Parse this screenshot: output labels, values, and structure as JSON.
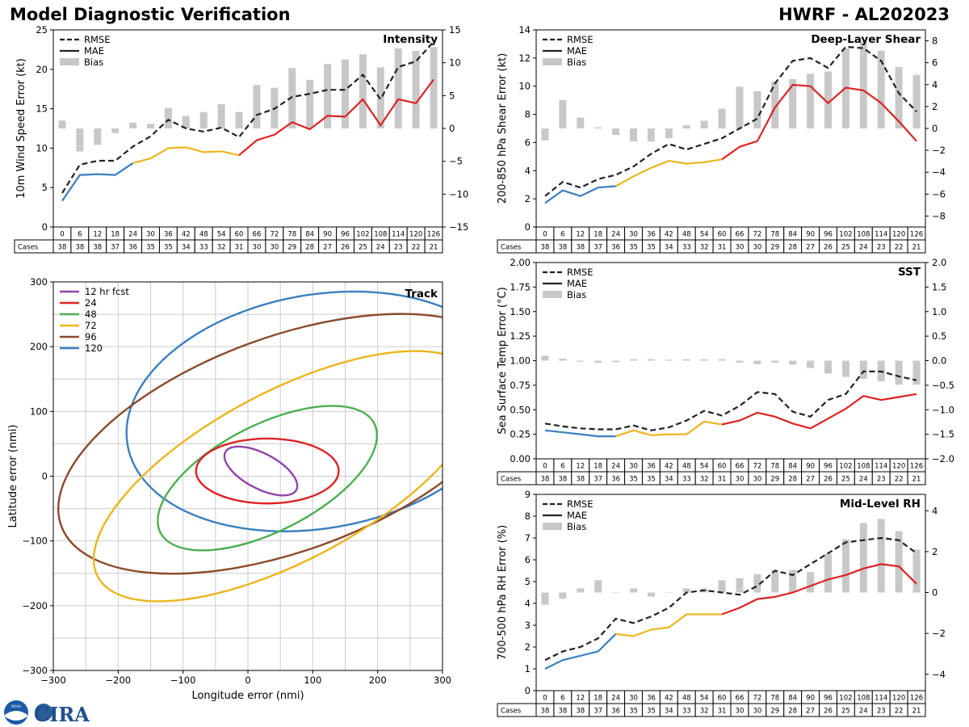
{
  "header": {
    "left_title": "Model Diagnostic Verification",
    "right_title": "HWRF - AL202023"
  },
  "logos": {
    "noaa": "NOAA",
    "cira": "CIRA"
  },
  "colors": {
    "rmse": "#222222",
    "mae_early": "#3a7fbe",
    "mae_mid": "#ecb51e",
    "mae_late": "#dc2324",
    "bias": "#c8c8c8",
    "grid": "#cccccc"
  },
  "cases_label": "Cases",
  "chart_data": [
    {
      "id": "intensity",
      "type": "line",
      "title": "Intensity",
      "ylabel": "10m Wind Speed Error (kt)",
      "ylim": [
        0,
        25
      ],
      "yticks": [
        0,
        5,
        10,
        15,
        20,
        25
      ],
      "y2lim": [
        -15,
        15
      ],
      "y2ticks": [
        -15,
        -10,
        -5,
        0,
        5,
        10,
        15
      ],
      "legend": [
        "RMSE",
        "MAE",
        "Bias"
      ],
      "x": [
        0,
        6,
        12,
        18,
        24,
        30,
        36,
        42,
        48,
        54,
        60,
        66,
        72,
        78,
        84,
        90,
        96,
        102,
        108,
        114,
        120,
        126
      ],
      "rmse": [
        4.3,
        7.9,
        8.4,
        8.4,
        10.2,
        11.5,
        13.6,
        12.5,
        12.1,
        12.6,
        11.4,
        14.2,
        15.0,
        16.5,
        16.9,
        17.4,
        17.4,
        19.3,
        16.2,
        20.3,
        21.0,
        23.5
      ],
      "mae": [
        3.3,
        6.6,
        6.7,
        6.6,
        8.1,
        8.7,
        10.0,
        10.1,
        9.5,
        9.6,
        9.1,
        11.0,
        11.7,
        13.3,
        12.4,
        14.1,
        14.0,
        16.2,
        12.9,
        16.2,
        15.7,
        18.7
      ],
      "bias": [
        1.2,
        -3.5,
        -2.5,
        -0.7,
        0.9,
        0.7,
        3.1,
        1.9,
        2.5,
        3.7,
        2.5,
        6.6,
        6.2,
        9.2,
        7.4,
        9.8,
        10.5,
        11.3,
        9.3,
        12.2,
        11.8,
        12.4
      ],
      "cases": [
        38,
        38,
        38,
        37,
        36,
        35,
        35,
        34,
        33,
        32,
        31,
        30,
        30,
        29,
        28,
        27,
        26,
        25,
        24,
        23,
        22,
        21
      ]
    },
    {
      "id": "shear",
      "type": "line",
      "title": "Deep-Layer Shear",
      "ylabel": "200-850 hPa Shear Error (kt)",
      "ylim": [
        0,
        14
      ],
      "yticks": [
        0,
        2,
        4,
        6,
        8,
        10,
        12,
        14
      ],
      "y2lim": [
        -9,
        9
      ],
      "y2ticks": [
        -8,
        -6,
        -4,
        -2,
        0,
        2,
        4,
        6,
        8
      ],
      "legend": [
        "RMSE",
        "MAE",
        "Bias"
      ],
      "x": [
        0,
        6,
        12,
        18,
        24,
        30,
        36,
        42,
        48,
        54,
        60,
        66,
        72,
        78,
        84,
        90,
        96,
        102,
        108,
        114,
        120,
        126
      ],
      "rmse": [
        2.2,
        3.2,
        2.8,
        3.4,
        3.7,
        4.3,
        5.2,
        5.9,
        5.5,
        5.9,
        6.3,
        7.0,
        7.7,
        10.2,
        11.8,
        12.0,
        11.3,
        12.8,
        12.7,
        11.8,
        9.5,
        8.2
      ],
      "mae": [
        1.7,
        2.6,
        2.2,
        2.8,
        2.9,
        3.6,
        4.2,
        4.7,
        4.5,
        4.6,
        4.8,
        5.7,
        6.1,
        8.5,
        10.1,
        10.0,
        8.8,
        9.9,
        9.7,
        8.8,
        7.5,
        6.1
      ],
      "bias": [
        -1.1,
        2.6,
        1.0,
        0.1,
        -0.6,
        -1.2,
        -1.2,
        -0.9,
        0.3,
        0.7,
        1.8,
        3.8,
        3.4,
        4.3,
        4.5,
        5.0,
        5.2,
        7.3,
        7.9,
        7.1,
        5.6,
        4.9
      ],
      "cases": [
        38,
        38,
        38,
        37,
        36,
        35,
        35,
        34,
        33,
        32,
        31,
        30,
        30,
        29,
        28,
        27,
        26,
        25,
        24,
        23,
        22,
        21
      ]
    },
    {
      "id": "sst",
      "type": "line",
      "title": "SST",
      "ylabel": "Sea Surface Temp Error (°C)",
      "ylim": [
        0,
        2
      ],
      "yticks": [
        0.0,
        0.25,
        0.5,
        0.75,
        1.0,
        1.25,
        1.5,
        1.75,
        2.0
      ],
      "y2lim": [
        -2,
        2
      ],
      "y2ticks": [
        -2.0,
        -1.5,
        -1.0,
        -0.5,
        0.0,
        0.5,
        1.0,
        1.5,
        2.0
      ],
      "legend": [
        "RMSE",
        "MAE",
        "Bias"
      ],
      "x": [
        0,
        6,
        12,
        18,
        24,
        30,
        36,
        42,
        48,
        54,
        60,
        66,
        72,
        78,
        84,
        90,
        96,
        102,
        108,
        114,
        120,
        126
      ],
      "rmse": [
        0.36,
        0.33,
        0.31,
        0.3,
        0.3,
        0.34,
        0.29,
        0.32,
        0.39,
        0.49,
        0.44,
        0.54,
        0.68,
        0.66,
        0.48,
        0.43,
        0.6,
        0.66,
        0.89,
        0.89,
        0.84,
        0.8
      ],
      "mae": [
        0.29,
        0.27,
        0.25,
        0.23,
        0.23,
        0.29,
        0.24,
        0.25,
        0.25,
        0.38,
        0.35,
        0.39,
        0.47,
        0.43,
        0.36,
        0.31,
        0.41,
        0.51,
        0.64,
        0.6,
        0.63,
        0.66
      ],
      "bias": [
        0.1,
        0.04,
        -0.02,
        -0.04,
        -0.03,
        0.03,
        0.03,
        0.02,
        0.03,
        0.03,
        0.03,
        -0.04,
        -0.07,
        -0.04,
        -0.08,
        -0.15,
        -0.26,
        -0.33,
        -0.37,
        -0.42,
        -0.49,
        -0.49
      ],
      "cases": [
        38,
        38,
        38,
        37,
        36,
        35,
        35,
        34,
        33,
        32,
        31,
        30,
        30,
        29,
        28,
        27,
        26,
        25,
        24,
        23,
        22,
        21
      ]
    },
    {
      "id": "rh",
      "type": "line",
      "title": "Mid-Level RH",
      "ylabel": "700-500 hPa RH Error (%)",
      "ylim": [
        0,
        9
      ],
      "yticks": [
        0,
        1,
        2,
        3,
        4,
        5,
        6,
        7,
        8,
        9
      ],
      "y2lim": [
        -4.8,
        4.8
      ],
      "y2ticks": [
        -4,
        -2,
        0,
        2,
        4
      ],
      "legend": [
        "RMSE",
        "MAE",
        "Bias"
      ],
      "x": [
        0,
        6,
        12,
        18,
        24,
        30,
        36,
        42,
        48,
        54,
        60,
        66,
        72,
        78,
        84,
        90,
        96,
        102,
        108,
        114,
        120,
        126
      ],
      "rmse": [
        1.4,
        1.8,
        2.0,
        2.4,
        3.3,
        3.1,
        3.4,
        3.8,
        4.5,
        4.6,
        4.5,
        4.4,
        4.8,
        5.5,
        5.3,
        5.8,
        6.3,
        6.8,
        6.9,
        7.0,
        6.9,
        6.3
      ],
      "mae": [
        1.0,
        1.4,
        1.6,
        1.8,
        2.6,
        2.5,
        2.8,
        2.9,
        3.5,
        3.5,
        3.5,
        3.8,
        4.2,
        4.3,
        4.5,
        4.8,
        5.1,
        5.3,
        5.6,
        5.8,
        5.7,
        4.9
      ],
      "bias": [
        -0.6,
        -0.3,
        0.2,
        0.6,
        0.0,
        0.2,
        -0.2,
        0.0,
        0.2,
        0.2,
        0.6,
        0.7,
        0.9,
        1.1,
        1.1,
        1.0,
        1.9,
        2.6,
        3.4,
        3.6,
        3.0,
        2.1
      ],
      "cases": [
        38,
        38,
        38,
        37,
        36,
        35,
        35,
        34,
        33,
        32,
        31,
        30,
        30,
        29,
        28,
        27,
        26,
        25,
        24,
        23,
        22,
        21
      ]
    },
    {
      "id": "track",
      "type": "line",
      "title": "Track",
      "xlabel": "Longitude error (nmi)",
      "ylabel": "Latitude error (nmi)",
      "xlim": [
        -300,
        300
      ],
      "ylim": [
        -300,
        300
      ],
      "ticks": [
        -300,
        -200,
        -100,
        0,
        100,
        200,
        300
      ],
      "ellipses": [
        {
          "label": "12 hr fcst",
          "color": "#8e44a8",
          "cx": 20,
          "cy": 8,
          "rx": 62,
          "ry": 27,
          "angle": -28
        },
        {
          "label": "24",
          "color": "#dc2324",
          "cx": 30,
          "cy": 8,
          "rx": 110,
          "ry": 50,
          "angle": 0
        },
        {
          "label": "48",
          "color": "#4caf50",
          "cx": 30,
          "cy": -3,
          "rx": 185,
          "ry": 82,
          "angle": 27
        },
        {
          "label": "72",
          "color": "#ecb51e",
          "cx": 60,
          "cy": 0,
          "rx": 330,
          "ry": 130,
          "angle": 28
        },
        {
          "label": "96",
          "color": "#8b4a2b",
          "cx": 60,
          "cy": 50,
          "rx": 370,
          "ry": 165,
          "angle": 20
        },
        {
          "label": "120",
          "color": "#3a7fbe",
          "cx": 110,
          "cy": 100,
          "rx": 300,
          "ry": 180,
          "angle": 10
        }
      ]
    }
  ]
}
